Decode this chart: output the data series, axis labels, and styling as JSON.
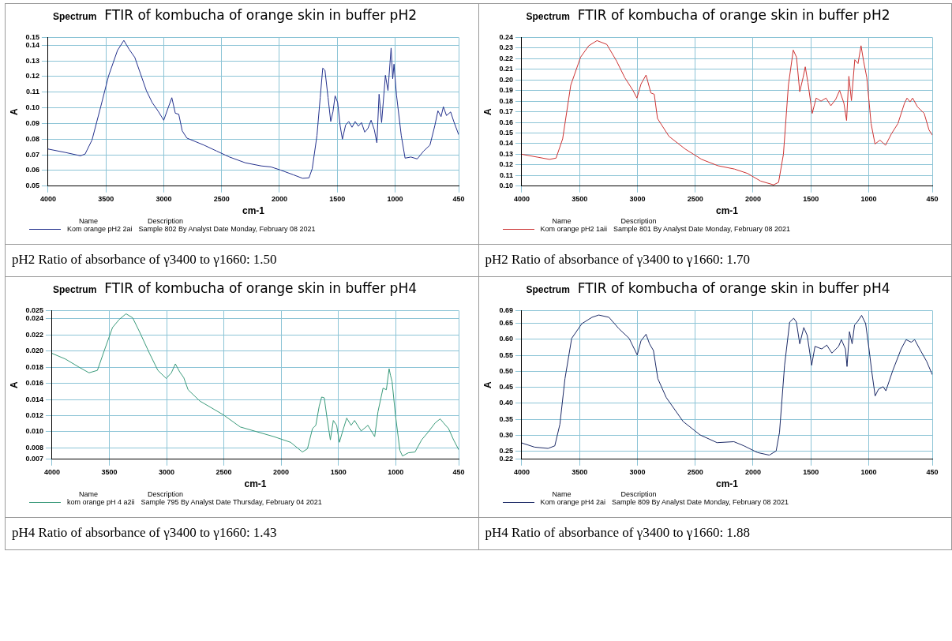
{
  "chart_data": [
    {
      "type": "line",
      "title": "FTIR of kombucha of orange skin in buffer pH2",
      "xlabel": "cm-1",
      "ylabel": "A",
      "xlim": [
        4000,
        450
      ],
      "xticks": [
        4000,
        3500,
        3000,
        2500,
        2000,
        1500,
        1000,
        450
      ],
      "ylim": [
        0.05,
        0.145
      ],
      "yticks": [
        0.05,
        0.06,
        0.07,
        0.08,
        0.09,
        {
          "value": 0.1,
          "label": "0.10"
        },
        0.11,
        0.12,
        0.13,
        0.14,
        {
          "value": 0.145,
          "label": "0.15"
        }
      ],
      "grid": true,
      "legend": "bottom",
      "marker": "none",
      "annotations": [
        "Spectrum",
        "Name",
        "Description",
        "Sample 802 By Analyst Date Monday, February 08 2021",
        "pH2 Ratio of absorbance of γ3400 to γ1660: 1.50"
      ],
      "series": [
        {
          "name": "Kom orange pH2 2ai",
          "color": "#23308c",
          "x": [
            4000,
            3850,
            3720,
            3680,
            3620,
            3546,
            3477,
            3400,
            3345,
            3300,
            3250,
            3200,
            3150,
            3100,
            3050,
            3000,
            2960,
            2930,
            2900,
            2870,
            2840,
            2800,
            2652,
            2542,
            2431,
            2294,
            2156,
            2074,
            1991,
            1881,
            1799,
            1744,
            1716,
            1675,
            1647,
            1625,
            1606,
            1579,
            1556,
            1537,
            1518,
            1496,
            1474,
            1455,
            1427,
            1400,
            1372,
            1345,
            1317,
            1290,
            1262,
            1235,
            1207,
            1179,
            1157,
            1138,
            1116,
            1083,
            1061,
            1034,
            1020,
            1009,
            987,
            946,
            913,
            863,
            808,
            753,
            698,
            657,
            629,
            602,
            582,
            555,
            519,
            492,
            450
          ],
          "values": [
            0.0737,
            0.0715,
            0.0694,
            0.0705,
            0.0795,
            0.1004,
            0.1204,
            0.1367,
            0.1431,
            0.1375,
            0.1322,
            0.1216,
            0.111,
            0.1034,
            0.0981,
            0.0921,
            0.1004,
            0.1065,
            0.0966,
            0.0959,
            0.0853,
            0.0807,
            0.0762,
            0.0724,
            0.0686,
            0.0649,
            0.0629,
            0.0623,
            0.0603,
            0.0573,
            0.055,
            0.0553,
            0.0611,
            0.0823,
            0.1065,
            0.1254,
            0.124,
            0.1065,
            0.0913,
            0.0974,
            0.1077,
            0.1034,
            0.0883,
            0.08,
            0.0891,
            0.0913,
            0.0876,
            0.0913,
            0.0883,
            0.0906,
            0.0845,
            0.0868,
            0.0921,
            0.086,
            0.0777,
            0.1087,
            0.0906,
            0.1208,
            0.111,
            0.1382,
            0.1186,
            0.1279,
            0.108,
            0.0823,
            0.0679,
            0.0686,
            0.0674,
            0.0724,
            0.0762,
            0.0883,
            0.0981,
            0.0944,
            0.1007,
            0.0951,
            0.0974,
            0.0913,
            0.083
          ]
        }
      ]
    },
    {
      "type": "line",
      "title": "FTIR of kombucha of orange skin in buffer pH2",
      "xlabel": "cm-1",
      "ylabel": "A",
      "xlim": [
        4000,
        450
      ],
      "xticks": [
        4000,
        3500,
        3000,
        2500,
        2000,
        1500,
        1000,
        450
      ],
      "ylim": [
        0.1,
        0.24
      ],
      "yticks": [
        {
          "value": 0.1,
          "label": "0.10"
        },
        0.11,
        0.12,
        0.13,
        0.14,
        0.15,
        0.16,
        0.17,
        0.18,
        0.19,
        {
          "value": 0.2,
          "label": "0.20"
        },
        0.21,
        0.22,
        0.23,
        0.24
      ],
      "grid": true,
      "legend": "bottom",
      "marker": "none",
      "annotations": [
        "Spectrum",
        "Name",
        "Description",
        "Sample 801 By Analyst Date Monday, February 08 2021",
        "pH2 Ratio of absorbance of γ3400 to γ1660: 1.70"
      ],
      "series": [
        {
          "name": "Kom orange pH2 1aii",
          "color": "#cc3333",
          "x": [
            4000,
            3859,
            3760,
            3703,
            3646,
            3576,
            3491,
            3420,
            3349,
            3264,
            3180,
            3109,
            3038,
            3004,
            2968,
            2925,
            2883,
            2854,
            2826,
            2727,
            2586,
            2444,
            2303,
            2161,
            2048,
            1935,
            1822,
            1779,
            1737,
            1694,
            1652,
            1624,
            1596,
            1567,
            1548,
            1525,
            1488,
            1454,
            1412,
            1369,
            1327,
            1285,
            1251,
            1214,
            1191,
            1171,
            1149,
            1120,
            1092,
            1066,
            1044,
            1016,
            979,
            945,
            902,
            854,
            803,
            747,
            690,
            668,
            642,
            620,
            577,
            520,
            478,
            450
          ],
          "values": [
            0.13,
            0.1272,
            0.1252,
            0.1264,
            0.1445,
            0.195,
            0.2214,
            0.2322,
            0.237,
            0.2334,
            0.2178,
            0.2022,
            0.1901,
            0.1829,
            0.1962,
            0.2046,
            0.1877,
            0.1865,
            0.1637,
            0.1469,
            0.1349,
            0.1252,
            0.1192,
            0.1161,
            0.112,
            0.1048,
            0.1012,
            0.1036,
            0.13,
            0.195,
            0.2281,
            0.2214,
            0.1889,
            0.2022,
            0.2123,
            0.1974,
            0.1685,
            0.1829,
            0.18,
            0.1829,
            0.1757,
            0.1817,
            0.1901,
            0.1781,
            0.1618,
            0.2034,
            0.1805,
            0.219,
            0.2154,
            0.2322,
            0.2178,
            0.2022,
            0.1589,
            0.1397,
            0.1433,
            0.1385,
            0.1493,
            0.1589,
            0.1781,
            0.1829,
            0.1793,
            0.1829,
            0.1745,
            0.1685,
            0.1529,
            0.1481
          ]
        }
      ]
    },
    {
      "type": "line",
      "title": "FTIR of kombucha of orange skin in buffer pH4",
      "xlabel": "cm-1",
      "ylabel": "A",
      "xlim": [
        4000,
        450
      ],
      "xticks": [
        4000,
        3500,
        3000,
        2500,
        2000,
        1500,
        1000,
        450
      ],
      "ylim": [
        0.0066,
        0.025
      ],
      "yticks": [
        {
          "value": 0.0066,
          "label": "0.007"
        },
        0.008,
        {
          "value": 0.01,
          "label": "0.010"
        },
        0.012,
        0.014,
        0.016,
        0.018,
        {
          "value": 0.02,
          "label": "0.020"
        },
        0.022,
        0.024,
        0.025
      ],
      "grid": true,
      "legend": "bottom",
      "marker": "none",
      "annotations": [
        "Spectrum",
        "Name",
        "Description",
        "Sample 795 By Analyst Date Thursday, February 04 2021",
        "pH4 Ratio of absorbance of γ3400 to γ1660: 1.43"
      ],
      "series": [
        {
          "name": "kom orange pH 4 a2ii",
          "color": "#3a9a7a",
          "x": [
            4000,
            3883,
            3765,
            3677,
            3604,
            3545,
            3472,
            3413,
            3354,
            3296,
            3237,
            3149,
            3076,
            3003,
            2958,
            2923,
            2885,
            2850,
            2812,
            2709,
            2504,
            2357,
            2210,
            2063,
            1917,
            1814,
            1770,
            1726,
            1697,
            1667,
            1646,
            1623,
            1600,
            1570,
            1544,
            1515,
            1491,
            1462,
            1427,
            1389,
            1359,
            1301,
            1242,
            1183,
            1154,
            1110,
            1081,
            1057,
            1045,
            1031,
            1002,
            963,
            940,
            890,
            831,
            773,
            714,
            655,
            611,
            582,
            538,
            494,
            450
          ],
          "values": [
            0.0197,
            0.019,
            0.018,
            0.0173,
            0.0176,
            0.02,
            0.0229,
            0.0239,
            0.0246,
            0.0241,
            0.0224,
            0.0197,
            0.0176,
            0.0166,
            0.0173,
            0.0184,
            0.0174,
            0.0167,
            0.0152,
            0.0138,
            0.0121,
            0.0106,
            0.01,
            0.0094,
            0.0087,
            0.0075,
            0.0079,
            0.0104,
            0.0108,
            0.0132,
            0.0143,
            0.0142,
            0.0118,
            0.009,
            0.0114,
            0.0108,
            0.0087,
            0.0101,
            0.0117,
            0.0108,
            0.0114,
            0.0101,
            0.0108,
            0.0094,
            0.0125,
            0.0154,
            0.0152,
            0.0178,
            0.017,
            0.0162,
            0.0121,
            0.0077,
            0.007,
            0.0074,
            0.0075,
            0.009,
            0.01,
            0.0111,
            0.0116,
            0.0111,
            0.0104,
            0.009,
            0.0078
          ]
        }
      ]
    },
    {
      "type": "line",
      "title": "FTIR of kombucha of orange skin in buffer pH4",
      "xlabel": "cm-1",
      "ylabel": "A",
      "xlim": [
        4000,
        450
      ],
      "xticks": [
        4000,
        3500,
        3000,
        2500,
        2000,
        1500,
        1000,
        450
      ],
      "ylim": [
        0.225,
        0.69
      ],
      "yticks": [
        {
          "value": 0.225,
          "label": "0.22"
        },
        0.25,
        {
          "value": 0.3,
          "label": "0.30"
        },
        0.35,
        {
          "value": 0.4,
          "label": "0.40"
        },
        0.45,
        {
          "value": 0.5,
          "label": "0.50"
        },
        0.55,
        {
          "value": 0.6,
          "label": "0.60"
        },
        0.65,
        0.69
      ],
      "grid": true,
      "legend": "bottom",
      "marker": "none",
      "annotations": [
        "Spectrum",
        "Name",
        "Description",
        "Sample 809 By Analyst Date Monday, February 08 2021",
        "pH4 Ratio of absorbance of γ3400 to γ1660: 1.88"
      ],
      "series": [
        {
          "name": "Kom orange pH4 2ai",
          "color": "#1c2a66",
          "x": [
            4000,
            3889,
            3772,
            3714,
            3670,
            3626,
            3568,
            3480,
            3392,
            3334,
            3246,
            3159,
            3071,
            3001,
            2969,
            2925,
            2895,
            2861,
            2823,
            2750,
            2604,
            2457,
            2311,
            2165,
            2078,
            1961,
            1859,
            1800,
            1771,
            1727,
            1683,
            1648,
            1625,
            1596,
            1561,
            1531,
            1493,
            1464,
            1406,
            1362,
            1318,
            1260,
            1236,
            1201,
            1187,
            1166,
            1143,
            1122,
            1099,
            1061,
            1026,
            997,
            974,
            944,
            915,
            875,
            851,
            792,
            719,
            676,
            632,
            602,
            559,
            500,
            450
          ],
          "values": [
            0.276,
            0.263,
            0.259,
            0.267,
            0.334,
            0.477,
            0.603,
            0.649,
            0.669,
            0.676,
            0.669,
            0.633,
            0.603,
            0.551,
            0.595,
            0.616,
            0.586,
            0.565,
            0.477,
            0.418,
            0.343,
            0.301,
            0.277,
            0.28,
            0.267,
            0.246,
            0.238,
            0.251,
            0.309,
            0.519,
            0.654,
            0.666,
            0.654,
            0.586,
            0.637,
            0.612,
            0.519,
            0.578,
            0.57,
            0.582,
            0.557,
            0.578,
            0.599,
            0.57,
            0.515,
            0.624,
            0.586,
            0.645,
            0.654,
            0.675,
            0.649,
            0.57,
            0.502,
            0.423,
            0.444,
            0.452,
            0.439,
            0.502,
            0.57,
            0.599,
            0.591,
            0.599,
            0.57,
            0.532,
            0.49
          ]
        }
      ]
    }
  ]
}
